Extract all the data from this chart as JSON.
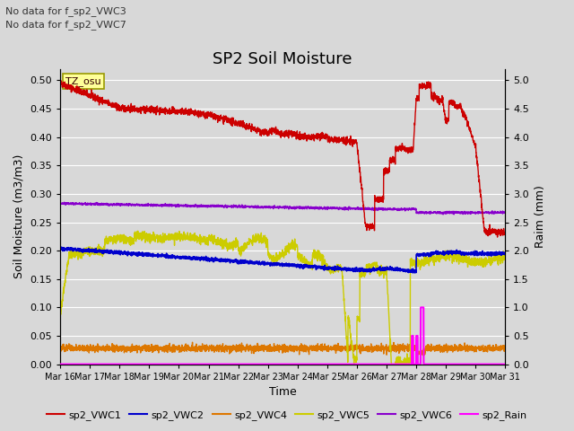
{
  "title": "SP2 Soil Moisture",
  "xlabel": "Time",
  "ylabel_left": "Soil Moisture (m3/m3)",
  "ylabel_right": "Raim (mm)",
  "no_data_text": [
    "No data for f_sp2_VWC3",
    "No data for f_sp2_VWC7"
  ],
  "tz_label": "TZ_osu",
  "ylim_left": [
    0.0,
    0.52
  ],
  "ylim_right": [
    0.0,
    5.2
  ],
  "yticks_left": [
    0.0,
    0.05,
    0.1,
    0.15,
    0.2,
    0.25,
    0.3,
    0.35,
    0.4,
    0.45,
    0.5
  ],
  "yticks_right": [
    0.0,
    0.5,
    1.0,
    1.5,
    2.0,
    2.5,
    3.0,
    3.5,
    4.0,
    4.5,
    5.0
  ],
  "xtick_labels": [
    "Mar 16",
    "Mar 17",
    "Mar 18",
    "Mar 19",
    "Mar 20",
    "Mar 21",
    "Mar 22",
    "Mar 23",
    "Mar 24",
    "Mar 25",
    "Mar 26",
    "Mar 27",
    "Mar 28",
    "Mar 29",
    "Mar 30",
    "Mar 31"
  ],
  "colors": {
    "sp2_VWC1": "#cc0000",
    "sp2_VWC2": "#0000cc",
    "sp2_VWC4": "#dd7700",
    "sp2_VWC5": "#cccc00",
    "sp2_VWC6": "#8800cc",
    "sp2_Rain": "#ff00ff"
  },
  "background_color": "#d8d8d8",
  "plot_background": "#d8d8d8",
  "grid_color": "#ffffff",
  "title_fontsize": 13,
  "axis_label_fontsize": 9,
  "tick_fontsize": 8,
  "fig_width": 6.4,
  "fig_height": 4.8,
  "fig_dpi": 100
}
